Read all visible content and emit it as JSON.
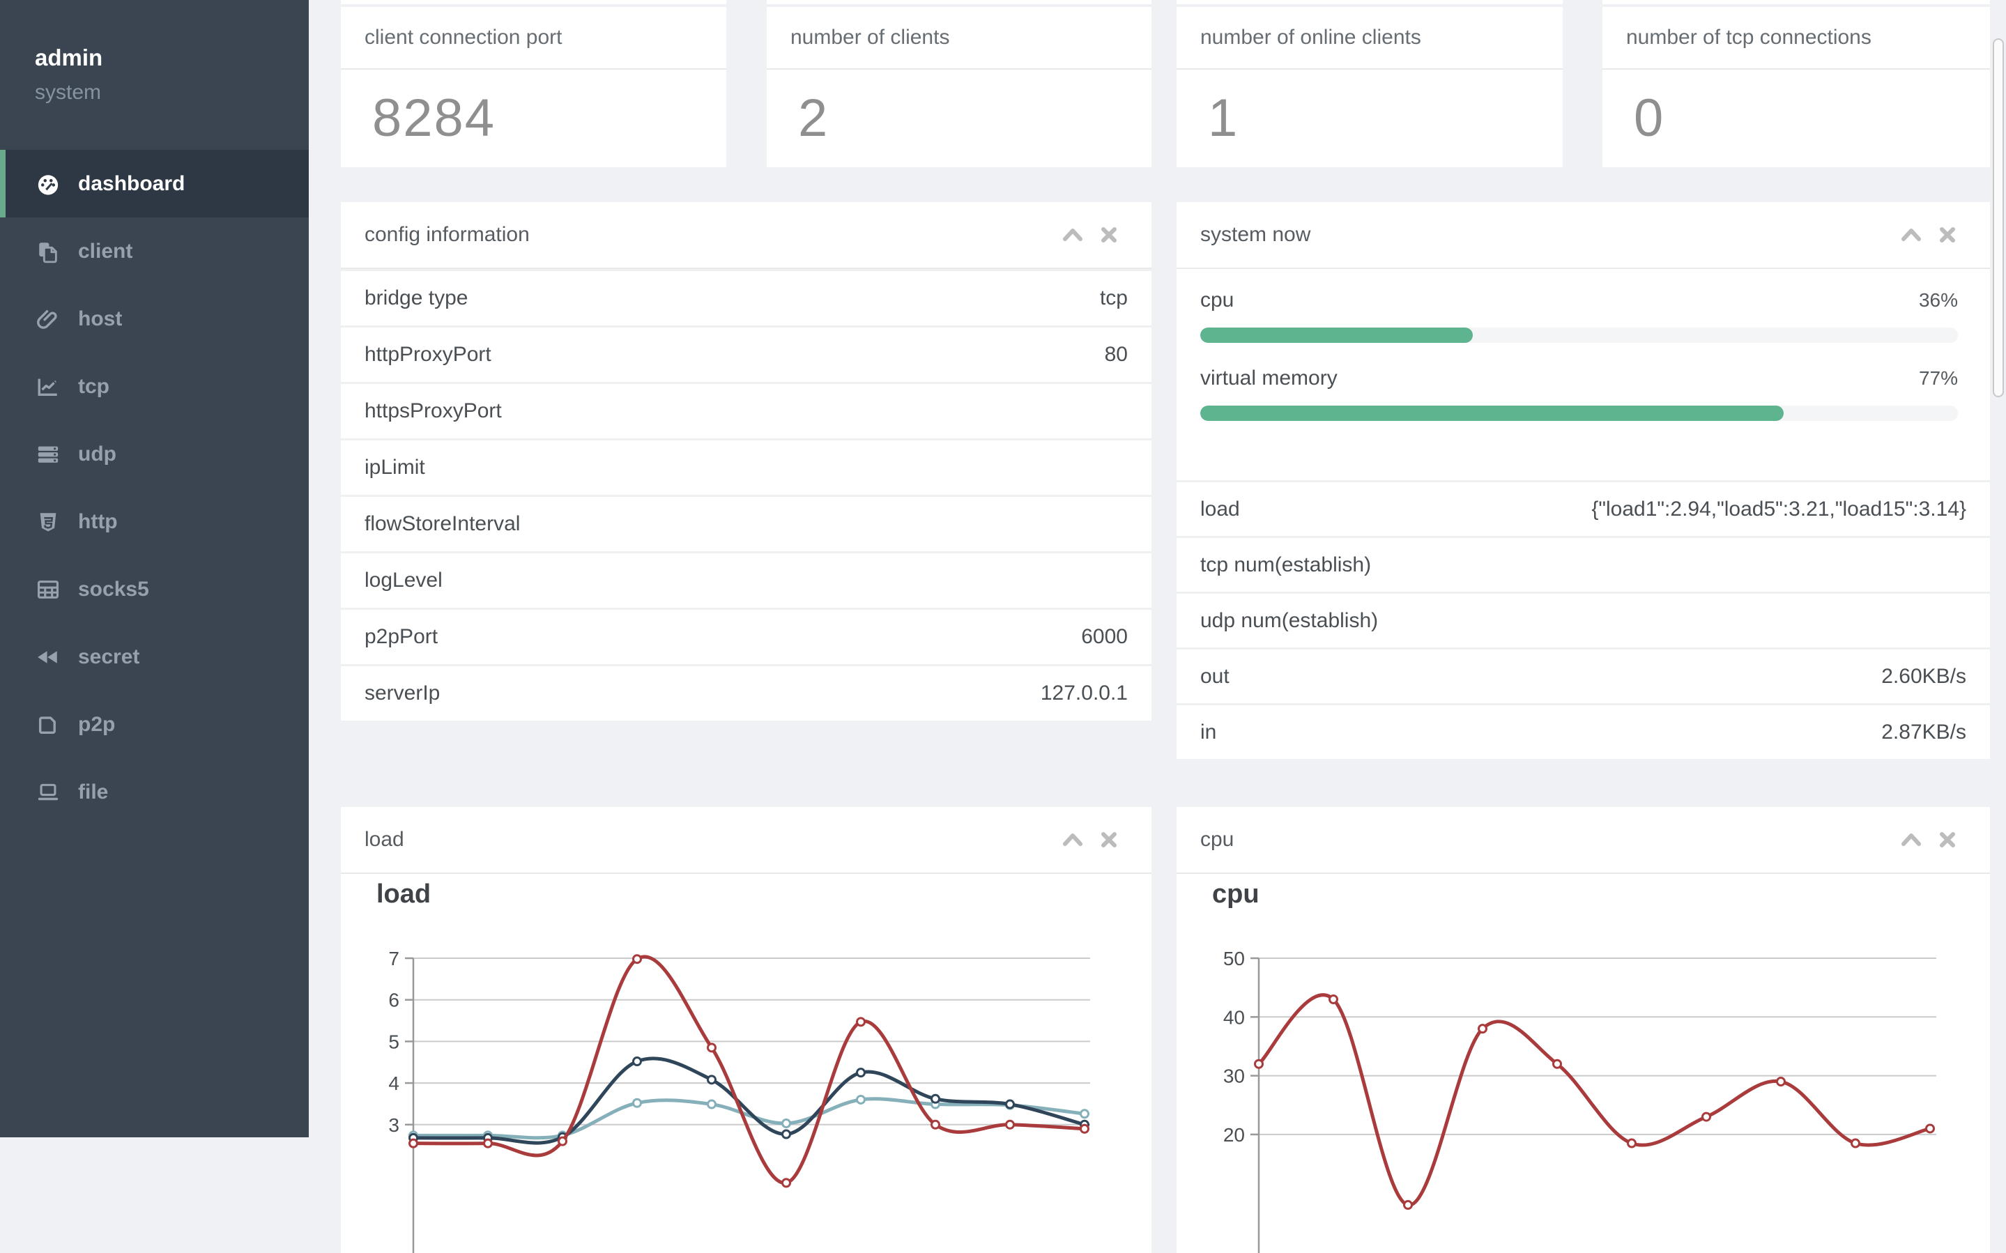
{
  "theme": {
    "accent_green": "#5eb48e",
    "sidebar_bg": "#3a4551",
    "sidebar_active_bg": "#2e3844",
    "page_bg": "#f0f1f4",
    "line_red": "#a93b3c",
    "line_navy": "#2f4559",
    "line_teal": "#85b0ba"
  },
  "sidebar": {
    "user": {
      "name": "admin",
      "role": "system"
    },
    "items": [
      {
        "label": "dashboard",
        "icon": "tachometer-icon",
        "active": true
      },
      {
        "label": "client",
        "icon": "clone-icon",
        "active": false
      },
      {
        "label": "host",
        "icon": "paperclip-icon",
        "active": false
      },
      {
        "label": "tcp",
        "icon": "chart-line-icon",
        "active": false
      },
      {
        "label": "udp",
        "icon": "server-icon",
        "active": false
      },
      {
        "label": "http",
        "icon": "html5-icon",
        "active": false
      },
      {
        "label": "socks5",
        "icon": "table-icon",
        "active": false
      },
      {
        "label": "secret",
        "icon": "backward-icon",
        "active": false
      },
      {
        "label": "p2p",
        "icon": "p2p-icon",
        "active": false
      },
      {
        "label": "file",
        "icon": "laptop-icon",
        "active": false
      }
    ]
  },
  "stat_cards": [
    {
      "title": "client connection port",
      "value": "8284"
    },
    {
      "title": "number of clients",
      "value": "2"
    },
    {
      "title": "number of online clients",
      "value": "1"
    },
    {
      "title": "number of tcp connections",
      "value": "0"
    }
  ],
  "config_panel": {
    "title": "config information",
    "tools": [
      "collapse-icon",
      "close-icon"
    ],
    "rows": [
      {
        "label": "bridge type",
        "value": "tcp"
      },
      {
        "label": "httpProxyPort",
        "value": "80"
      },
      {
        "label": "httpsProxyPort",
        "value": ""
      },
      {
        "label": "ipLimit",
        "value": ""
      },
      {
        "label": "flowStoreInterval",
        "value": ""
      },
      {
        "label": "logLevel",
        "value": ""
      },
      {
        "label": "p2pPort",
        "value": "6000"
      },
      {
        "label": "serverIp",
        "value": "127.0.0.1"
      }
    ]
  },
  "system_panel": {
    "title": "system now",
    "tools": [
      "collapse-icon",
      "close-icon"
    ],
    "gauges": [
      {
        "label": "cpu",
        "percent": 36,
        "display": "36%"
      },
      {
        "label": "virtual memory",
        "percent": 77,
        "display": "77%"
      }
    ],
    "rows": [
      {
        "label": "load",
        "value": "{\"load1\":2.94,\"load5\":3.21,\"load15\":3.14}"
      },
      {
        "label": "tcp num(establish)",
        "value": ""
      },
      {
        "label": "udp num(establish)",
        "value": ""
      },
      {
        "label": "out",
        "value": "2.60KB/s"
      },
      {
        "label": "in",
        "value": "2.87KB/s"
      }
    ]
  },
  "panels": {
    "load": {
      "header": "load",
      "tools": [
        "collapse-icon",
        "close-icon"
      ]
    },
    "cpu": {
      "header": "cpu",
      "tools": [
        "collapse-icon",
        "close-icon"
      ]
    }
  },
  "chart_data": [
    {
      "type": "line",
      "title": "load",
      "xlabel": "",
      "ylabel": "",
      "y_ticks": [
        3,
        4,
        5,
        6,
        7
      ],
      "ylim_visible": [
        2.7,
        7.3
      ],
      "grid": true,
      "legend": "none",
      "x_count": 10,
      "x_labels_visible": false,
      "series": [
        {
          "name": "load15",
          "color": "#85b0ba",
          "values": [
            2.74,
            2.74,
            2.74,
            3.52,
            3.49,
            3.03,
            3.6,
            3.49,
            3.47,
            3.26
          ]
        },
        {
          "name": "load5",
          "color": "#2f4559",
          "values": [
            2.68,
            2.68,
            2.7,
            4.52,
            4.08,
            2.77,
            4.25,
            3.62,
            3.49,
            3.0
          ]
        },
        {
          "name": "load1",
          "color": "#a93b3c",
          "values": [
            2.55,
            2.55,
            2.6,
            6.98,
            4.85,
            1.6,
            5.47,
            3.0,
            3.0,
            2.9
          ]
        }
      ]
    },
    {
      "type": "line",
      "title": "cpu",
      "xlabel": "",
      "ylabel": "",
      "y_ticks": [
        20,
        30,
        40,
        50
      ],
      "ylim_visible": [
        19.5,
        52
      ],
      "grid": true,
      "legend": "none",
      "x_count": 10,
      "x_labels_visible": false,
      "series": [
        {
          "name": "cpu",
          "color": "#a93b3c",
          "values": [
            32,
            43,
            8,
            38,
            32,
            18.5,
            23,
            29,
            18.5,
            21
          ]
        }
      ]
    }
  ]
}
